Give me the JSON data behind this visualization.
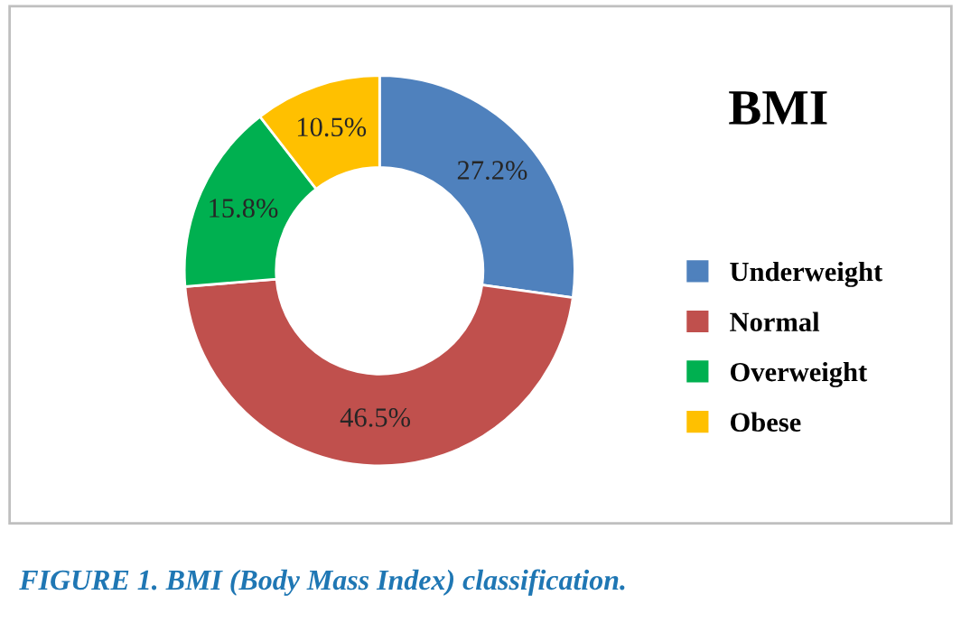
{
  "chart_data": {
    "type": "donut",
    "title": "BMI",
    "categories": [
      "Underweight",
      "Normal",
      "Overweight",
      "Obese"
    ],
    "values": [
      27.2,
      46.5,
      15.8,
      10.5
    ],
    "colors": [
      "#4f81bd",
      "#c0504d",
      "#00b050",
      "#ffc000"
    ],
    "value_labels": [
      "27.2%",
      "46.5%",
      "15.8%",
      "10.5%"
    ],
    "legend": "right",
    "annotations": [
      "FIGURE 1. BMI (Body Mass Index) classification."
    ]
  }
}
